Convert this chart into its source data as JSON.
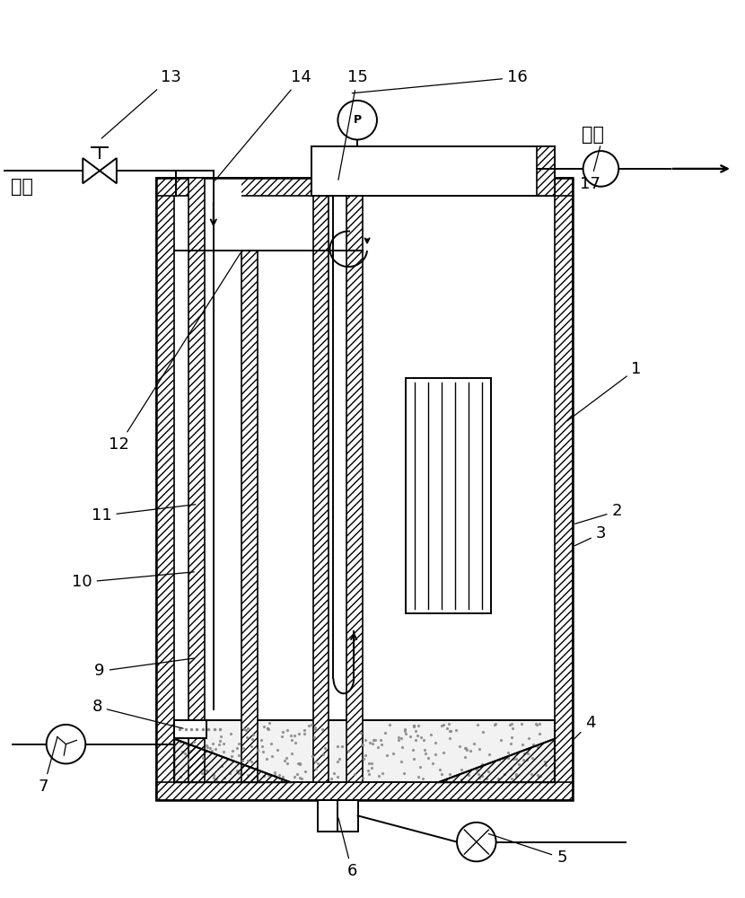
{
  "bg": "#ffffff",
  "lc": "#000000",
  "fig_w": 8.3,
  "fig_h": 10.0,
  "jinshui": "进水",
  "chushui": "出水",
  "P_label": "P"
}
